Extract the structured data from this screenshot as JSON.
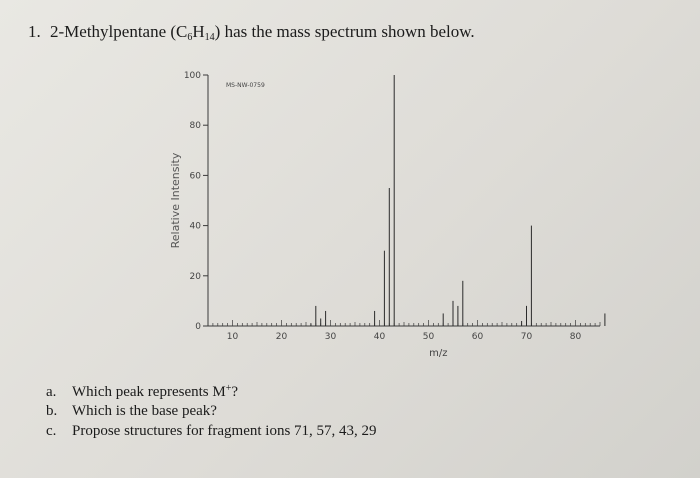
{
  "question": {
    "number": "1.",
    "name": "2-Methylpentane (C",
    "formula_c_sub": "6",
    "formula_h": "H",
    "formula_h_sub": "14",
    "tail": ") has the mass spectrum shown below."
  },
  "chart_data": {
    "type": "bar",
    "code_label": "MS-NW-0759",
    "ylabel": "Relative Intensity",
    "xlabel": "m/z",
    "xlim": [
      5,
      85
    ],
    "ylim": [
      0,
      100
    ],
    "x_ticks": [
      10,
      20,
      30,
      40,
      50,
      60,
      70,
      80
    ],
    "y_ticks": [
      0,
      20,
      40,
      60,
      80,
      100
    ],
    "x": [
      26,
      27,
      28,
      29,
      39,
      41,
      42,
      43,
      53,
      55,
      56,
      57,
      69,
      70,
      71,
      86
    ],
    "values": [
      1,
      8,
      3,
      6,
      6,
      30,
      55,
      100,
      5,
      10,
      8,
      18,
      2,
      8,
      40,
      5
    ]
  },
  "parts": [
    {
      "letter": "a.",
      "text_before": "Which peak represents M",
      "superscript": "+",
      "text_after": "?"
    },
    {
      "letter": "b.",
      "text_before": "Which is the base peak?",
      "superscript": "",
      "text_after": ""
    },
    {
      "letter": "c.",
      "text_before": "Propose structures for fragment ions 71, 57, 43, 29",
      "superscript": "",
      "text_after": ""
    }
  ]
}
